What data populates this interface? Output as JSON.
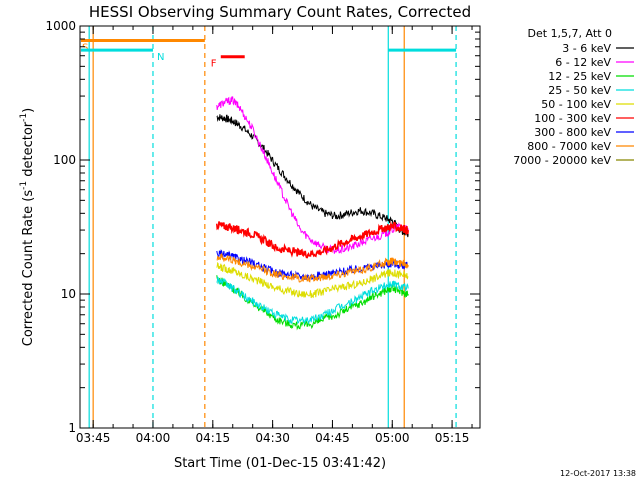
{
  "chart_data": {
    "type": "line",
    "title": "HESSI Observing Summary Count Rates, Corrected",
    "xlabel": "Start Time (01-Dec-15 03:41:42)",
    "ylabel_main": "Corrected Count Rate (s",
    "ylabel_sup1": "-1",
    "ylabel_mid": " detector",
    "ylabel_sup2": "-1",
    "ylabel_end": ")",
    "yscale": "log",
    "ylim": [
      1,
      1000
    ],
    "xlim": [
      "03:41:42",
      "05:22:00"
    ],
    "x_ticks": [
      "03:45",
      "04:00",
      "04:15",
      "04:30",
      "04:45",
      "05:00",
      "05:15"
    ],
    "y_ticks": [
      "1",
      "10",
      "100",
      "1000"
    ],
    "legend_title": "Det 1,5,7, Att 0",
    "legend_placement": "right",
    "footer_date": "12-Oct-2017 13:38",
    "series": [
      {
        "name": "3 - 6 keV",
        "color": "#000000",
        "x": [
          "04:16",
          "04:18",
          "04:20",
          "04:22",
          "04:25",
          "04:28",
          "04:31",
          "04:34",
          "04:37",
          "04:40",
          "04:43",
          "04:46",
          "04:49",
          "04:52",
          "04:55",
          "04:58",
          "05:00",
          "05:02",
          "05:04"
        ],
        "y": [
          210,
          205,
          195,
          180,
          150,
          120,
          90,
          70,
          55,
          45,
          40,
          38,
          40,
          42,
          40,
          37,
          35,
          30,
          28
        ]
      },
      {
        "name": "6 - 12 keV",
        "color": "#ff00ff",
        "x": [
          "04:16",
          "04:18",
          "04:20",
          "04:22",
          "04:25",
          "04:28",
          "04:31",
          "04:34",
          "04:37",
          "04:40",
          "04:43",
          "04:46",
          "04:49",
          "04:52",
          "04:55",
          "04:58",
          "05:00",
          "05:02",
          "05:04"
        ],
        "y": [
          250,
          270,
          280,
          240,
          170,
          110,
          70,
          45,
          30,
          25,
          22,
          21,
          22,
          24,
          26,
          28,
          30,
          32,
          30
        ]
      },
      {
        "name": "12 - 25 keV",
        "color": "#00dd00",
        "x": [
          "04:16",
          "04:18",
          "04:20",
          "04:22",
          "04:25",
          "04:28",
          "04:31",
          "04:34",
          "04:37",
          "04:40",
          "04:43",
          "04:46",
          "04:49",
          "04:52",
          "04:55",
          "04:58",
          "05:00",
          "05:02",
          "05:04"
        ],
        "y": [
          13,
          12,
          11,
          10,
          8.5,
          7.5,
          6.5,
          6,
          5.8,
          6,
          6.5,
          7,
          7.8,
          8.5,
          9.5,
          10.5,
          11,
          10.5,
          10
        ]
      },
      {
        "name": "25 - 50 keV",
        "color": "#00dddd",
        "x": [
          "04:16",
          "04:18",
          "04:20",
          "04:22",
          "04:25",
          "04:28",
          "04:31",
          "04:34",
          "04:37",
          "04:40",
          "04:43",
          "04:46",
          "04:49",
          "04:52",
          "04:55",
          "04:58",
          "05:00",
          "05:02",
          "05:04"
        ],
        "y": [
          13,
          12,
          11,
          10,
          8.8,
          7.8,
          7,
          6.5,
          6.3,
          6.5,
          7,
          7.8,
          8.5,
          9.5,
          10.5,
          11.5,
          12,
          11.5,
          11
        ]
      },
      {
        "name": "50 - 100 keV",
        "color": "#dddd00",
        "x": [
          "04:16",
          "04:18",
          "04:20",
          "04:22",
          "04:25",
          "04:28",
          "04:31",
          "04:34",
          "04:37",
          "04:40",
          "04:43",
          "04:46",
          "04:49",
          "04:52",
          "04:55",
          "04:58",
          "05:00",
          "05:02",
          "05:04"
        ],
        "y": [
          16,
          15.5,
          15,
          14,
          13,
          12,
          11,
          10.5,
          10,
          10,
          10.5,
          11,
          11.5,
          12,
          13,
          14,
          14.5,
          14,
          13.5
        ]
      },
      {
        "name": "100 - 300 keV",
        "color": "#ff0000",
        "x": [
          "04:16",
          "04:18",
          "04:20",
          "04:22",
          "04:25",
          "04:28",
          "04:31",
          "04:34",
          "04:37",
          "04:40",
          "04:43",
          "04:46",
          "04:49",
          "04:52",
          "04:55",
          "04:58",
          "05:00",
          "05:02",
          "05:04"
        ],
        "y": [
          33,
          32,
          31,
          30,
          28,
          25,
          22,
          21,
          20,
          20,
          21,
          23,
          25,
          27,
          29,
          31,
          32,
          31,
          30
        ]
      },
      {
        "name": "300 - 800 keV",
        "color": "#0000ff",
        "x": [
          "04:16",
          "04:18",
          "04:20",
          "04:22",
          "04:25",
          "04:28",
          "04:31",
          "04:34",
          "04:37",
          "04:40",
          "04:43",
          "04:46",
          "04:49",
          "04:52",
          "04:55",
          "04:58",
          "05:00",
          "05:02",
          "05:04"
        ],
        "y": [
          20,
          19.5,
          19,
          18,
          17,
          15.5,
          14.5,
          14,
          13.5,
          13.5,
          14,
          14.5,
          15,
          15.5,
          16,
          16.5,
          17,
          16.5,
          16
        ]
      },
      {
        "name": "800 - 7000 keV",
        "color": "#ff8800",
        "x": [
          "04:16",
          "04:18",
          "04:20",
          "04:22",
          "04:25",
          "04:28",
          "04:31",
          "04:34",
          "04:37",
          "04:40",
          "04:43",
          "04:46",
          "04:49",
          "04:52",
          "04:55",
          "04:58",
          "05:00",
          "05:02",
          "05:04"
        ],
        "y": [
          19,
          18.5,
          18,
          17,
          16,
          15,
          14,
          13.5,
          13,
          13,
          13.5,
          14,
          14.5,
          15,
          16,
          17,
          17.5,
          17,
          16.5
        ]
      },
      {
        "name": "7000 - 20000 keV",
        "color": "#888800",
        "x": [
          "04:16",
          "04:20",
          "04:24",
          "04:28",
          "04:32",
          "04:36",
          "04:40",
          "04:44",
          "04:48",
          "04:52",
          "04:56",
          "05:00",
          "05:04"
        ],
        "y": [
          1,
          1,
          1,
          1,
          1,
          1,
          1,
          1,
          1,
          1,
          1,
          1,
          1
        ]
      }
    ],
    "markers": [
      {
        "label": "S",
        "color": "#ff8800",
        "from": "03:41:42",
        "to": "04:13",
        "y": 780
      },
      {
        "label": "N",
        "color": "#00dddd",
        "from": "03:41:42",
        "to": "04:00",
        "y": 660
      },
      {
        "label": "F",
        "color": "#ff0000",
        "from": "04:17",
        "to": "04:23",
        "y": 590
      },
      {
        "label": "",
        "color": "#00dddd",
        "from": "04:59",
        "to": "05:16",
        "y": 660
      }
    ],
    "vlines": [
      {
        "t": "03:45",
        "color": "#ff8800",
        "style": "solid"
      },
      {
        "t": "03:44",
        "color": "#00dddd",
        "style": "solid"
      },
      {
        "t": "04:00",
        "color": "#00dddd",
        "style": "dashed"
      },
      {
        "t": "04:13",
        "color": "#ff8800",
        "style": "dashed"
      },
      {
        "t": "04:59",
        "color": "#00dddd",
        "style": "solid"
      },
      {
        "t": "05:03",
        "color": "#ff8800",
        "style": "solid"
      },
      {
        "t": "05:16",
        "color": "#00dddd",
        "style": "dashed"
      }
    ]
  }
}
